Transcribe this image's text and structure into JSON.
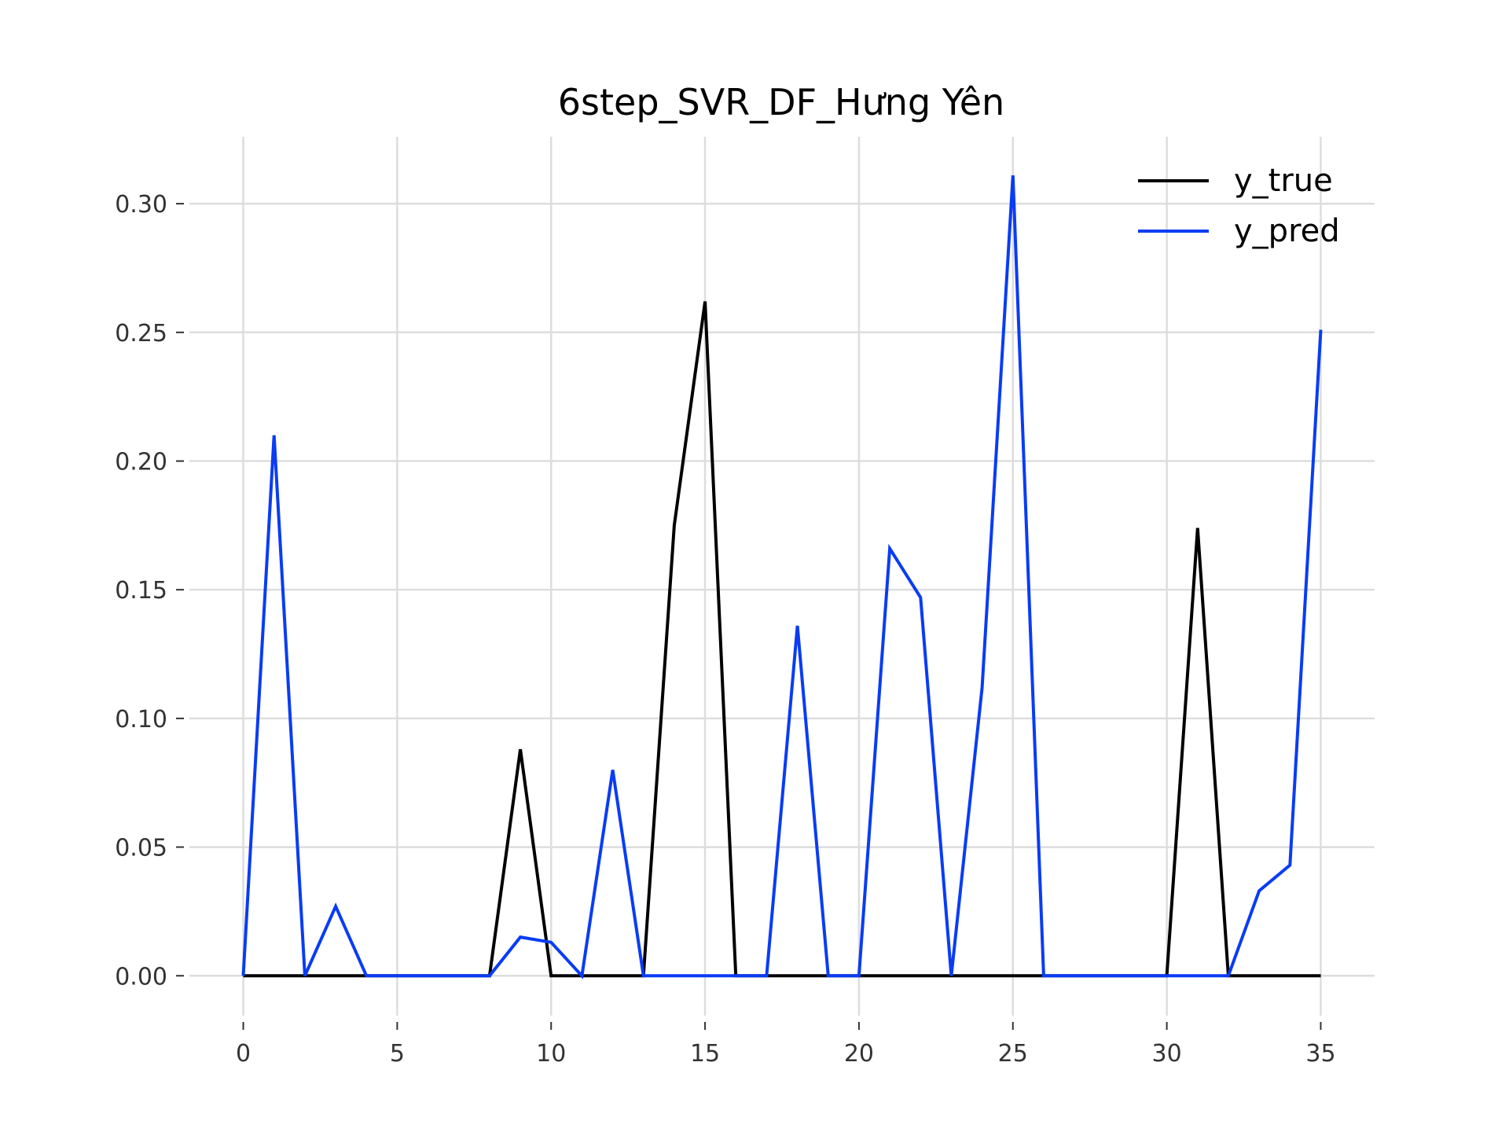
{
  "chart_data": {
    "type": "line",
    "title": "6step_SVR_DF_Hưng Yên",
    "xlabel": "",
    "ylabel": "",
    "xlim": [
      -1.75,
      36.75
    ],
    "ylim": [
      -0.0155,
      0.326
    ],
    "x_ticks": [
      0,
      5,
      10,
      15,
      20,
      25,
      30,
      35
    ],
    "x_tick_labels": [
      "0",
      "5",
      "10",
      "15",
      "20",
      "25",
      "30",
      "35"
    ],
    "y_ticks": [
      0.0,
      0.05,
      0.1,
      0.15,
      0.2,
      0.25,
      0.3
    ],
    "y_tick_labels": [
      "0.00",
      "0.05",
      "0.10",
      "0.15",
      "0.20",
      "0.25",
      "0.30"
    ],
    "grid": true,
    "legend_position": "top-right",
    "x": [
      0,
      1,
      2,
      3,
      4,
      5,
      6,
      7,
      8,
      9,
      10,
      11,
      12,
      13,
      14,
      15,
      16,
      17,
      18,
      19,
      20,
      21,
      22,
      23,
      24,
      25,
      26,
      27,
      28,
      29,
      30,
      31,
      32,
      33,
      34,
      35
    ],
    "series": [
      {
        "name": "y_true",
        "color": "#000000",
        "values": [
          0,
          0,
          0,
          0,
          0,
          0,
          0,
          0,
          0,
          0.088,
          0,
          0,
          0,
          0,
          0.175,
          0.262,
          0,
          0,
          0,
          0,
          0,
          0,
          0,
          0,
          0,
          0,
          0,
          0,
          0,
          0,
          0,
          0.174,
          0,
          0,
          0,
          0
        ]
      },
      {
        "name": "y_pred",
        "color": "#0a3cf5",
        "values": [
          0,
          0.21,
          0,
          0.027,
          0,
          0,
          0,
          0,
          0,
          0.015,
          0.013,
          0,
          0.08,
          0,
          0,
          0,
          0,
          0,
          0.136,
          0,
          0,
          0.166,
          0.147,
          0,
          0.112,
          0.311,
          0,
          0,
          0,
          0,
          0,
          0,
          0,
          0.033,
          0.043,
          0.251
        ]
      }
    ]
  }
}
